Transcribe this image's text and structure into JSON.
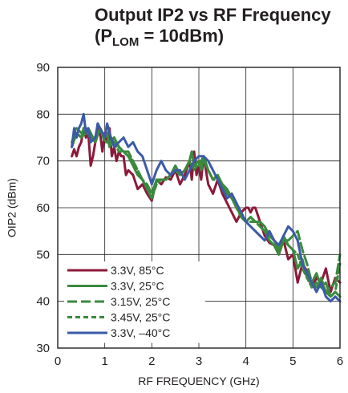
{
  "chart_data": {
    "type": "line",
    "title": {
      "line1": "Output IP2 vs RF Frequency",
      "open": "(P",
      "sub": "LOM",
      "close": " = 10dBm)"
    },
    "xlabel": "RF FREQUENCY (GHz)",
    "ylabel": "OIP2 (dBm)",
    "xlim": [
      0,
      6
    ],
    "ylim": [
      30,
      90
    ],
    "xticks": [
      "0",
      "1",
      "2",
      "3",
      "4",
      "5",
      "6"
    ],
    "yticks": [
      "30",
      "40",
      "50",
      "60",
      "70",
      "80",
      "90"
    ],
    "grid": true,
    "legend_position": "bottom-left",
    "series": [
      {
        "name": "3.3V, 85°C",
        "color": "#8b1a3a",
        "style": "solid",
        "x": [
          0.3,
          0.35,
          0.4,
          0.45,
          0.5,
          0.55,
          0.6,
          0.65,
          0.7,
          0.75,
          0.8,
          0.85,
          0.9,
          0.95,
          1.0,
          1.05,
          1.1,
          1.15,
          1.2,
          1.25,
          1.3,
          1.35,
          1.4,
          1.45,
          1.5,
          1.6,
          1.7,
          1.8,
          1.9,
          2.0,
          2.1,
          2.2,
          2.3,
          2.4,
          2.5,
          2.6,
          2.7,
          2.8,
          2.85,
          2.9,
          2.95,
          3.0,
          3.05,
          3.1,
          3.2,
          3.3,
          3.4,
          3.5,
          3.6,
          3.7,
          3.8,
          3.9,
          4.0,
          4.05,
          4.1,
          4.15,
          4.2,
          4.3,
          4.4,
          4.5,
          4.6,
          4.7,
          4.8,
          4.9,
          5.0,
          5.1,
          5.2,
          5.3,
          5.4,
          5.5,
          5.6,
          5.7,
          5.8,
          5.9,
          6.0
        ],
        "y": [
          71,
          72.5,
          71,
          73,
          74,
          77,
          75,
          76,
          69,
          71,
          74,
          78,
          76,
          72,
          76,
          74,
          77,
          71,
          73,
          70,
          72,
          71,
          71,
          67,
          68,
          67,
          64,
          65,
          63,
          61.5,
          66,
          65,
          66.5,
          66,
          68,
          65,
          67,
          70,
          66,
          72,
          67,
          69,
          66,
          71,
          65,
          63,
          66,
          63,
          61,
          59,
          57,
          59,
          60,
          60,
          59,
          60,
          60,
          57,
          54,
          52.5,
          52,
          50,
          53,
          49,
          50,
          44,
          48,
          46.5,
          43,
          45,
          44,
          47,
          42,
          45,
          44
        ]
      },
      {
        "name": "3.3V, 25°C",
        "color": "#3b8a3e",
        "style": "solid",
        "x": [
          0.3,
          0.4,
          0.5,
          0.55,
          0.6,
          0.65,
          0.7,
          0.8,
          0.9,
          1.0,
          1.05,
          1.1,
          1.2,
          1.3,
          1.4,
          1.5,
          1.6,
          1.7,
          1.8,
          1.9,
          2.0,
          2.1,
          2.2,
          2.3,
          2.4,
          2.5,
          2.6,
          2.7,
          2.8,
          2.85,
          2.9,
          3.0,
          3.05,
          3.1,
          3.2,
          3.3,
          3.4,
          3.5,
          3.6,
          3.7,
          3.8,
          3.9,
          4.0,
          4.1,
          4.2,
          4.3,
          4.4,
          4.5,
          4.6,
          4.7,
          4.8,
          4.9,
          5.0,
          5.1,
          5.2,
          5.3,
          5.4,
          5.5,
          5.6,
          5.7,
          5.8,
          5.9,
          6.0
        ],
        "y": [
          73,
          76,
          75,
          77,
          76,
          77,
          76,
          74,
          77,
          75,
          76,
          73,
          75,
          73,
          72,
          71,
          69,
          67,
          66,
          64,
          62,
          66,
          66,
          66,
          67,
          69,
          67,
          68,
          70,
          72,
          69,
          70,
          68,
          71,
          68,
          66,
          67,
          65,
          63,
          62,
          61,
          58,
          57,
          58,
          57,
          57,
          56,
          54,
          53,
          51,
          54,
          52,
          51,
          47,
          49,
          45,
          44,
          46,
          43,
          44,
          41,
          42,
          41
        ]
      },
      {
        "name": "3.15V, 25°C",
        "color": "#3b8a3e",
        "style": "dash",
        "x": [
          0.3,
          0.4,
          0.5,
          0.6,
          0.7,
          0.8,
          0.9,
          1.0,
          1.1,
          1.2,
          1.3,
          1.4,
          1.5,
          1.6,
          1.7,
          1.8,
          1.9,
          2.0,
          2.1,
          2.2,
          2.3,
          2.4,
          2.5,
          2.6,
          2.7,
          2.8,
          2.85,
          2.9,
          3.0,
          3.1,
          3.2,
          3.3,
          3.4,
          3.5,
          3.6,
          3.7,
          3.8,
          3.9,
          4.0,
          4.1,
          4.2,
          4.3,
          4.4,
          4.5,
          4.6,
          4.7,
          4.8,
          4.9,
          5.0,
          5.1,
          5.2,
          5.3,
          5.4,
          5.5,
          5.6,
          5.7,
          5.8,
          5.9,
          6.0
        ],
        "y": [
          74,
          77,
          76,
          77,
          75,
          75,
          77,
          75,
          74,
          75,
          73,
          72,
          72,
          70,
          68,
          66,
          65,
          63,
          66,
          66,
          66,
          67,
          69,
          67,
          68,
          70,
          72,
          69,
          69,
          71,
          68,
          66,
          66,
          65,
          64,
          62,
          60,
          58,
          57,
          58,
          57,
          56,
          55,
          53,
          52,
          50,
          53,
          53,
          54,
          55,
          51,
          48,
          44,
          43,
          45,
          42,
          43,
          44,
          50
        ]
      },
      {
        "name": "3.45V, 25°C",
        "color": "#3b8a3e",
        "style": "shortdash",
        "x": [
          0.3,
          0.4,
          0.5,
          0.6,
          0.7,
          0.8,
          0.9,
          1.0,
          1.1,
          1.2,
          1.3,
          1.4,
          1.5,
          1.6,
          1.7,
          1.8,
          1.9,
          2.0,
          2.1,
          2.2,
          2.3,
          2.4,
          2.5,
          2.6,
          2.7,
          2.8,
          2.9,
          3.0,
          3.1,
          3.2,
          3.3,
          3.4,
          3.5,
          3.6,
          3.7,
          3.8,
          3.9,
          4.0,
          4.1,
          4.2,
          4.3,
          4.4,
          4.5,
          4.6,
          4.7,
          4.8,
          4.9,
          5.0,
          5.1,
          5.2,
          5.3,
          5.4,
          5.5,
          5.6,
          5.7,
          5.8,
          5.9,
          6.0
        ],
        "y": [
          73,
          76,
          75,
          76,
          75,
          74,
          77,
          74,
          74,
          74,
          72,
          72,
          71,
          70,
          68,
          66,
          64,
          62,
          65,
          66,
          66,
          67,
          68,
          67,
          68,
          70,
          68,
          70,
          70,
          68,
          66,
          66,
          65,
          64,
          62,
          60,
          58,
          57,
          57,
          57,
          56,
          55,
          53,
          52,
          50,
          53,
          52,
          51,
          50,
          47,
          45,
          43,
          44,
          43,
          42,
          41,
          42,
          48
        ]
      },
      {
        "name": "3.3V, –40°C",
        "color": "#3c5aa8",
        "style": "solid",
        "x": [
          0.3,
          0.35,
          0.4,
          0.45,
          0.5,
          0.55,
          0.6,
          0.65,
          0.7,
          0.8,
          0.85,
          0.9,
          1.0,
          1.05,
          1.1,
          1.2,
          1.3,
          1.4,
          1.5,
          1.6,
          1.7,
          1.8,
          1.9,
          2.0,
          2.1,
          2.2,
          2.3,
          2.4,
          2.5,
          2.6,
          2.7,
          2.8,
          2.9,
          3.0,
          3.1,
          3.2,
          3.3,
          3.4,
          3.5,
          3.6,
          3.7,
          3.8,
          3.9,
          4.0,
          4.1,
          4.2,
          4.3,
          4.4,
          4.5,
          4.6,
          4.7,
          4.8,
          4.9,
          5.0,
          5.1,
          5.2,
          5.3,
          5.4,
          5.5,
          5.6,
          5.7,
          5.8,
          5.9,
          6.0
        ],
        "y": [
          73,
          77,
          75,
          77,
          78,
          80,
          76,
          77,
          74,
          75,
          78,
          77,
          75,
          78,
          76,
          73,
          74,
          75,
          73,
          74,
          72,
          71,
          68,
          65,
          68,
          70,
          68,
          67,
          68,
          68,
          66,
          68,
          70,
          71,
          71,
          70,
          68,
          66,
          64,
          62,
          63,
          61,
          59,
          57,
          56,
          55,
          54,
          53,
          55,
          53,
          52,
          54,
          56,
          55,
          53,
          48,
          46,
          44,
          42,
          44,
          41,
          40,
          41,
          40
        ]
      }
    ]
  }
}
